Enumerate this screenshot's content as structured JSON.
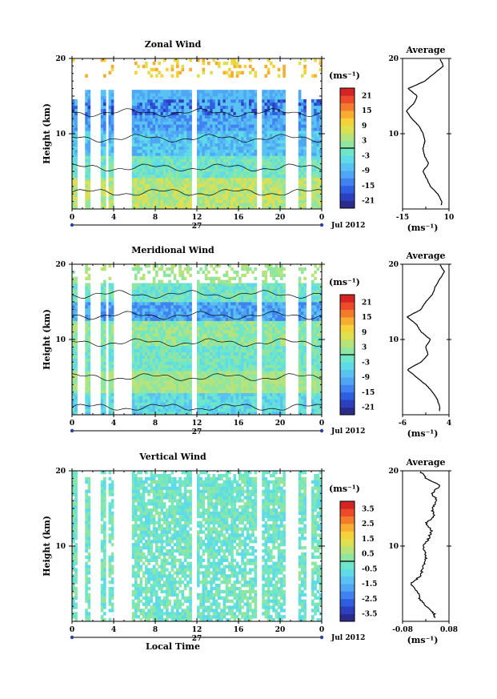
{
  "chart_data": [
    {
      "type": "heatmap",
      "title": "Zonal Wind",
      "ylabel": "Height (km)",
      "xlabel": "",
      "ylim": [
        0,
        20
      ],
      "xlim": [
        0,
        24
      ],
      "x_ticks": [
        "0",
        "4",
        "8",
        "12",
        "16",
        "20",
        "0"
      ],
      "y_ticks": [
        "20",
        "10"
      ],
      "date_day": "27",
      "date_month": "Jul 2012",
      "colorbar": {
        "unit": "(ms⁻¹)",
        "range": [
          -24,
          24
        ],
        "ticks": [
          "21",
          "15",
          "9",
          "3",
          "-3",
          "-9",
          "-15",
          "-21"
        ],
        "zero_line": 0
      },
      "average_profile": {
        "title": "Average",
        "xlabel": "(ms⁻¹)",
        "xlim": [
          -15,
          10
        ],
        "x_ticks": [
          "-15",
          "10"
        ],
        "y_ticks": [
          "20",
          "10"
        ],
        "heights_km": [
          1,
          2,
          3,
          4,
          5,
          6,
          7,
          8,
          9,
          10,
          11,
          12,
          13,
          14,
          15,
          16,
          17,
          18,
          19,
          20
        ],
        "values": [
          6,
          4,
          0,
          -2,
          -4,
          -1,
          -3,
          -4,
          -3,
          -4,
          -6,
          -10,
          -13,
          -9,
          -7,
          -12,
          -3,
          2,
          7,
          5
        ]
      }
    },
    {
      "type": "heatmap",
      "title": "Meridional Wind",
      "ylabel": "Height (km)",
      "xlabel": "",
      "ylim": [
        0,
        20
      ],
      "xlim": [
        0,
        24
      ],
      "x_ticks": [
        "0",
        "4",
        "8",
        "12",
        "16",
        "20",
        "0"
      ],
      "y_ticks": [
        "20",
        "10"
      ],
      "date_day": "27",
      "date_month": "Jul 2012",
      "colorbar": {
        "unit": "(ms⁻¹)",
        "range": [
          -24,
          24
        ],
        "ticks": [
          "21",
          "15",
          "9",
          "3",
          "-3",
          "-9",
          "-15",
          "-21"
        ],
        "zero_line": 0
      },
      "average_profile": {
        "title": "Average",
        "xlabel": "(ms⁻¹)",
        "xlim": [
          -6,
          4
        ],
        "x_ticks": [
          "-6",
          "4"
        ],
        "y_ticks": [
          "20",
          "10"
        ],
        "heights_km": [
          1,
          2,
          3,
          4,
          5,
          6,
          7,
          8,
          9,
          10,
          11,
          12,
          13,
          14,
          15,
          16,
          17,
          18,
          19,
          20
        ],
        "values": [
          2,
          1.5,
          0.5,
          -1,
          -3,
          -5,
          -2,
          -0.5,
          -1,
          0,
          -2,
          -3,
          -5,
          -2,
          -1,
          0.5,
          1,
          2,
          3,
          2
        ]
      }
    },
    {
      "type": "heatmap",
      "title": "Vertical Wind",
      "ylabel": "Height (km)",
      "xlabel": "Local Time",
      "ylim": [
        0,
        20
      ],
      "xlim": [
        0,
        24
      ],
      "x_ticks": [
        "0",
        "4",
        "8",
        "12",
        "16",
        "20",
        "0"
      ],
      "y_ticks": [
        "20",
        "10"
      ],
      "date_day": "27",
      "date_month": "Jul 2012",
      "colorbar": {
        "unit": "(ms⁻¹)",
        "range": [
          -4,
          4
        ],
        "ticks": [
          "3.5",
          "2.5",
          "1.5",
          "0.5",
          "-0.5",
          "-1.5",
          "-2.5",
          "-3.5"
        ],
        "zero_line": 0
      },
      "average_profile": {
        "title": "Average",
        "xlabel": "(ms⁻¹)",
        "xlim": [
          -0.08,
          0.08
        ],
        "x_ticks": [
          "-0.08",
          "0.08"
        ],
        "y_ticks": [
          "20",
          "10"
        ],
        "heights_km": [
          1,
          2,
          3,
          4,
          5,
          6,
          7,
          8,
          9,
          10,
          11,
          12,
          13,
          14,
          15,
          16,
          17,
          18,
          19,
          20
        ],
        "values": [
          0.03,
          0.0,
          -0.02,
          -0.03,
          -0.05,
          -0.02,
          -0.01,
          0.0,
          0.0,
          -0.01,
          0.01,
          0.02,
          0.0,
          0.03,
          0.02,
          0.04,
          0.02,
          0.05,
          0.0,
          -0.02
        ]
      }
    }
  ]
}
